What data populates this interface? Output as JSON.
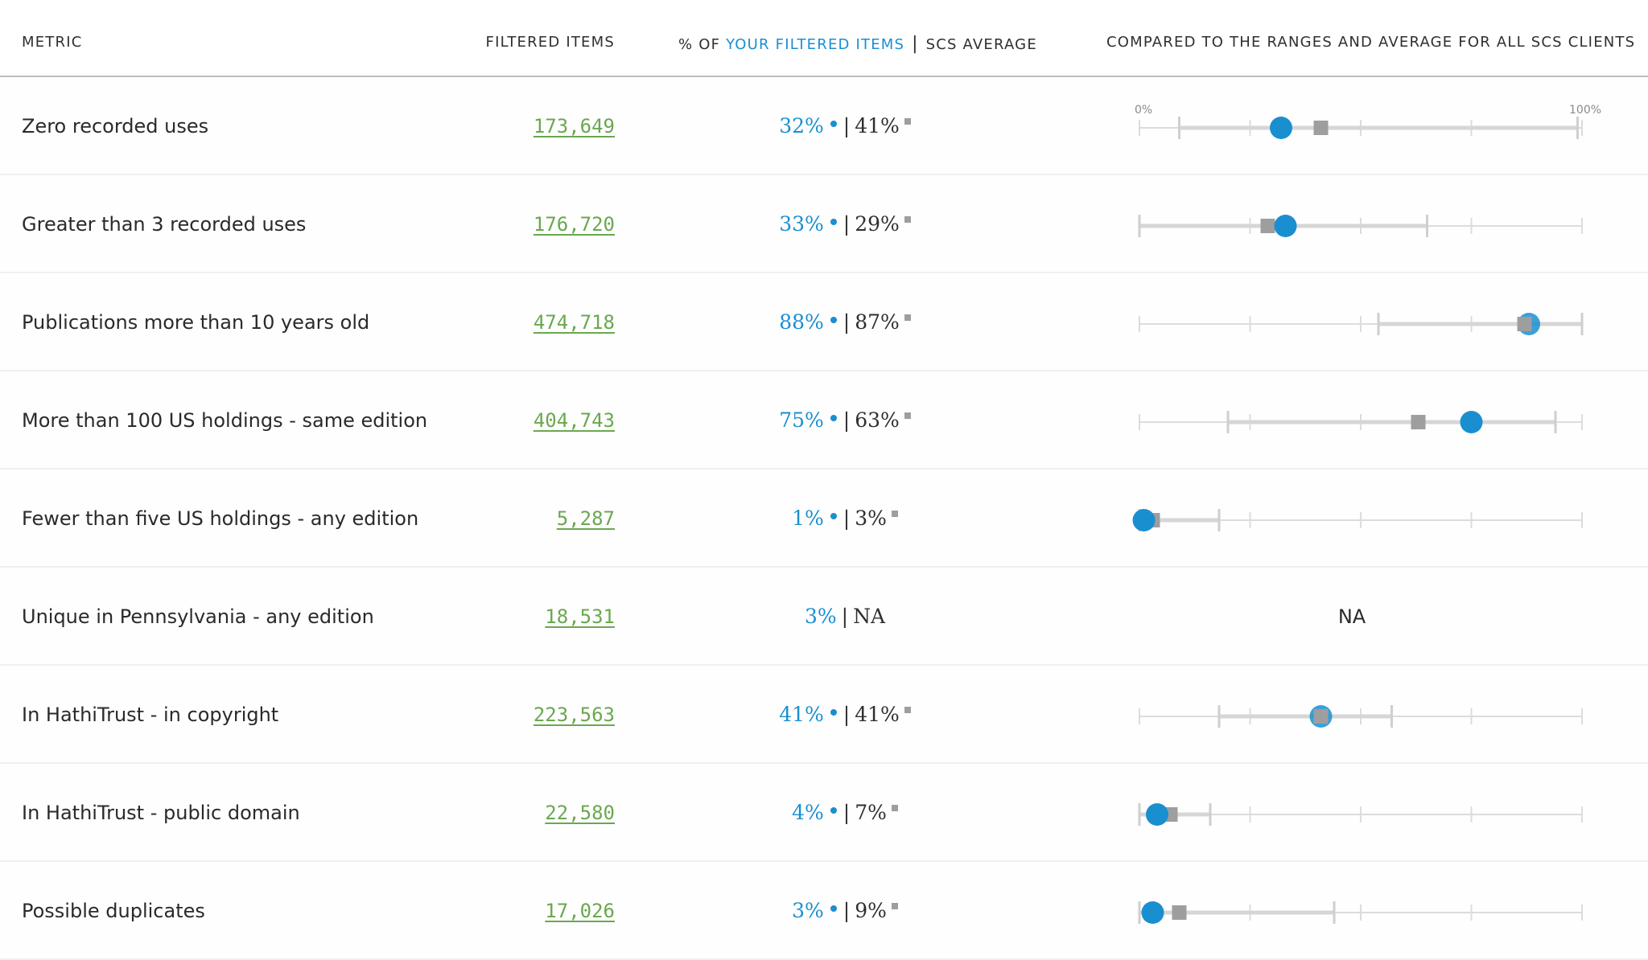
{
  "header": {
    "metric": "METRIC",
    "filtered_items": "FILTERED ITEMS",
    "pct_prefix": "% OF ",
    "pct_your": "YOUR FILTERED ITEMS",
    "pct_sep": "|",
    "pct_avg": "SCS AVERAGE",
    "compared": "COMPARED TO THE RANGES AND AVERAGE FOR ALL SCS CLIENTS"
  },
  "scale": {
    "min_label": "0%",
    "max_label": "100%"
  },
  "colors": {
    "you": "#1a8fd0",
    "average": "#9e9e9e",
    "link": "#6aa84f",
    "track": "#d6d6d6"
  },
  "rows": [
    {
      "metric": "Zero recorded uses",
      "filtered": "173,649",
      "you": "32%",
      "sep": "|",
      "avg": "41%",
      "you_val": 32,
      "avg_val": 41,
      "range": [
        9,
        99
      ]
    },
    {
      "metric": "Greater than 3 recorded uses",
      "filtered": "176,720",
      "you": "33%",
      "sep": "|",
      "avg": "29%",
      "you_val": 33,
      "avg_val": 29,
      "range": [
        0,
        65
      ]
    },
    {
      "metric": "Publications more than 10 years old",
      "filtered": "474,718",
      "you": "88%",
      "sep": "|",
      "avg": "87%",
      "you_val": 88,
      "avg_val": 87,
      "range": [
        54,
        100
      ]
    },
    {
      "metric": "More than 100 US holdings - same edition",
      "filtered": "404,743",
      "you": "75%",
      "sep": "|",
      "avg": "63%",
      "you_val": 75,
      "avg_val": 63,
      "range": [
        20,
        94
      ]
    },
    {
      "metric": "Fewer than five US holdings - any edition",
      "filtered": "5,287",
      "you": "1%",
      "sep": "|",
      "avg": "3%",
      "you_val": 1,
      "avg_val": 3,
      "range": [
        0,
        18
      ]
    },
    {
      "metric": "Unique in Pennsylvania - any edition",
      "filtered": "18,531",
      "you": "3%",
      "sep": "|",
      "avg": "NA",
      "you_val": 3,
      "avg_val": null,
      "range": null,
      "chart_text": "NA"
    },
    {
      "metric": "In HathiTrust - in copyright",
      "filtered": "223,563",
      "you": "41%",
      "sep": "|",
      "avg": "41%",
      "you_val": 41,
      "avg_val": 41,
      "range": [
        18,
        57
      ]
    },
    {
      "metric": "In HathiTrust - public domain",
      "filtered": "22,580",
      "you": "4%",
      "sep": "|",
      "avg": "7%",
      "you_val": 4,
      "avg_val": 7,
      "range": [
        0,
        16
      ]
    },
    {
      "metric": "Possible duplicates",
      "filtered": "17,026",
      "you": "3%",
      "sep": "|",
      "avg": "9%",
      "you_val": 3,
      "avg_val": 9,
      "range": [
        0,
        44
      ]
    }
  ]
}
